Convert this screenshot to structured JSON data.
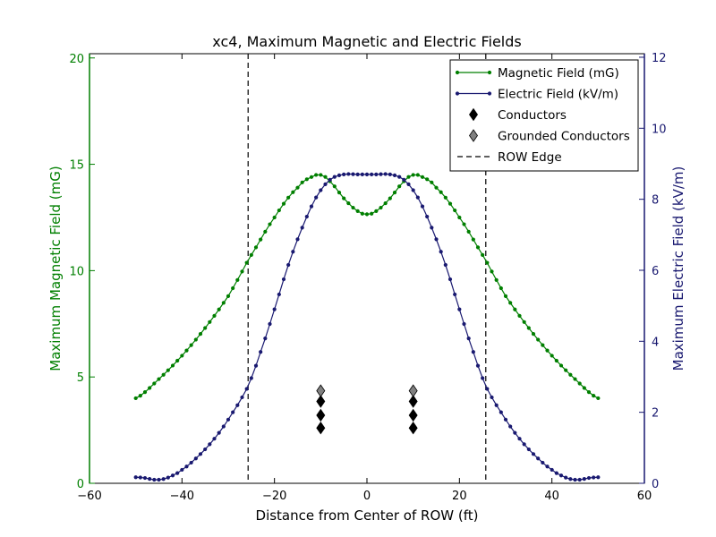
{
  "chart_data": {
    "type": "line",
    "title": "xc4, Maximum Magnetic and Electric Fields",
    "xlabel": "Distance from Center of ROW (ft)",
    "ylabel_left": "Maximum Magnetic Field (mG)",
    "ylabel_right": "Maximum Electric Field (kV/m)",
    "xlim": [
      -60,
      60
    ],
    "ylim_left": [
      0,
      20.2
    ],
    "ylim_right": [
      0,
      12.1
    ],
    "x_ticks": [
      "−60",
      "−40",
      "−20",
      "0",
      "20",
      "40",
      "60"
    ],
    "y_left_ticks": [
      "0",
      "5",
      "10",
      "15",
      "20"
    ],
    "y_right_ticks": [
      "0",
      "2",
      "4",
      "6",
      "8",
      "10",
      "12"
    ],
    "legend_position": "top-right",
    "colors": {
      "magnetic": "#007f00",
      "electric": "#191970",
      "left_axis": "#007f00",
      "right_axis": "#191970"
    },
    "series": [
      {
        "name": "Magnetic Field (mG)",
        "axis": "left",
        "x": [
          -50,
          -45,
          -40,
          -35,
          -30,
          -25.7,
          -20,
          -15,
          -12,
          -10,
          -8,
          -5,
          -2,
          0,
          2,
          5,
          8,
          10,
          12,
          15,
          20,
          25.7,
          30,
          35,
          40,
          45,
          50
        ],
        "y": [
          4.0,
          4.9,
          6.0,
          7.3,
          8.8,
          10.5,
          12.5,
          13.9,
          14.4,
          14.5,
          14.2,
          13.4,
          12.8,
          12.65,
          12.8,
          13.4,
          14.2,
          14.5,
          14.4,
          13.9,
          12.5,
          10.5,
          8.8,
          7.3,
          6.0,
          4.9,
          4.0
        ]
      },
      {
        "name": "Electric Field (kV/m)",
        "axis": "right",
        "x": [
          -50,
          -48,
          -46,
          -44,
          -42,
          -40,
          -37,
          -34,
          -31,
          -28,
          -25.7,
          -23,
          -20,
          -17,
          -14,
          -11,
          -8,
          -5,
          -2,
          0,
          2,
          5,
          8,
          11,
          14,
          17,
          20,
          23,
          25.7,
          28,
          31,
          34,
          37,
          40,
          42,
          44,
          46,
          48,
          50
        ],
        "y": [
          0.17,
          0.15,
          0.1,
          0.12,
          0.22,
          0.38,
          0.7,
          1.1,
          1.6,
          2.2,
          2.75,
          3.7,
          4.9,
          6.15,
          7.2,
          8.05,
          8.55,
          8.7,
          8.7,
          8.7,
          8.7,
          8.7,
          8.55,
          8.05,
          7.2,
          6.15,
          4.9,
          3.7,
          2.75,
          2.2,
          1.6,
          1.1,
          0.7,
          0.38,
          0.22,
          0.12,
          0.1,
          0.15,
          0.17
        ]
      },
      {
        "name": "Conductors",
        "axis": "left",
        "marker": "diamond",
        "x": [
          -10,
          -10,
          -10,
          10,
          10,
          10
        ],
        "y": [
          3.85,
          3.2,
          2.6,
          3.85,
          3.2,
          2.6
        ]
      },
      {
        "name": "Grounded Conductors",
        "axis": "left",
        "marker": "diamond-gray",
        "x": [
          -10,
          10
        ],
        "y": [
          4.35,
          4.35
        ]
      },
      {
        "name": "ROW Edge",
        "axis": "left",
        "style": "dashed-vertical",
        "x": [
          -25.7,
          25.7
        ]
      }
    ]
  }
}
